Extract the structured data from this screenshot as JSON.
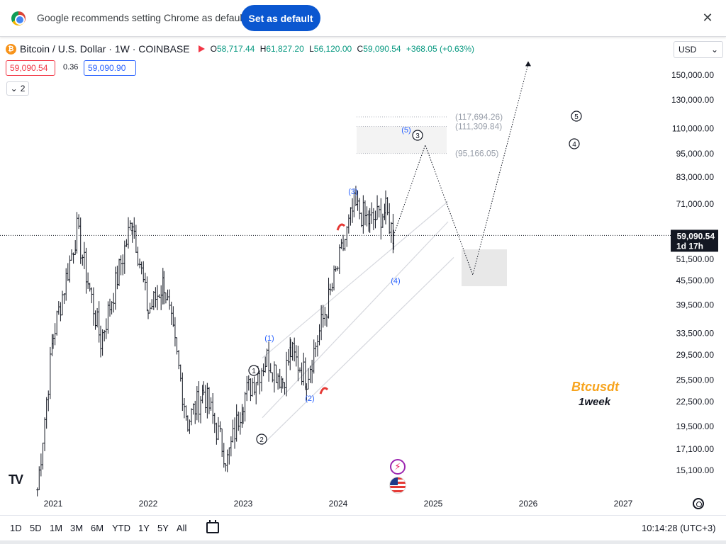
{
  "infobar": {
    "message": "Google recommends setting Chrome as default",
    "button_label": "Set as default",
    "close_label": "✕"
  },
  "symbol": {
    "title": "Bitcoin / U.S. Dollar · 1W · COINBASE",
    "ohlc": {
      "o_label": "O",
      "o": "58,717.44",
      "h_label": "H",
      "h": "61,827.20",
      "l_label": "L",
      "l": "56,120.00",
      "c_label": "C",
      "c": "59,090.54",
      "change": "+368.05 (+0.63%)"
    },
    "sell_price": "59,090.54",
    "spread": "0.36",
    "buy_price": "59,090.90",
    "indicator_count": "2",
    "currency": "USD"
  },
  "chart_data": {
    "type": "candlestick",
    "title": "Bitcoin / U.S. Dollar · 1W · COINBASE",
    "x_ticks": [
      "2021",
      "2022",
      "2023",
      "2024",
      "2025",
      "2026",
      "2027"
    ],
    "y_ticks": [
      "150,000.00",
      "130,000.00",
      "110,000.00",
      "95,000.00",
      "83,000.00",
      "71,000.00",
      "51,500.00",
      "45,500.00",
      "39,500.00",
      "33,500.00",
      "29,500.00",
      "25,500.00",
      "22,500.00",
      "19,500.00",
      "17,100.00",
      "15,100.00"
    ],
    "last_price_label": "59,090.54",
    "countdown_label": "1d 17h",
    "last_price": 59090.54,
    "fib_levels": [
      {
        "label": "(117,694.26)",
        "value": 117694.26
      },
      {
        "label": "(111,309.84)",
        "value": 111309.84
      },
      {
        "label": "(95,166.05)",
        "value": 95166.05
      }
    ],
    "wave_labels": {
      "blue": [
        "(1)",
        "(2)",
        "(3)",
        "(4)",
        "(5)"
      ],
      "black_circled": [
        "1",
        "2",
        "3",
        "4",
        "5"
      ]
    },
    "price_path": [
      {
        "date": "2020-11",
        "close": 13500
      },
      {
        "date": "2021-01",
        "close": 33000
      },
      {
        "date": "2021-04",
        "close": 61000
      },
      {
        "date": "2021-07",
        "close": 32000
      },
      {
        "date": "2021-11",
        "close": 65000
      },
      {
        "date": "2022-01",
        "close": 38000
      },
      {
        "date": "2022-03",
        "close": 45000
      },
      {
        "date": "2022-06",
        "close": 20000
      },
      {
        "date": "2022-08",
        "close": 24000
      },
      {
        "date": "2022-11",
        "close": 16000
      },
      {
        "date": "2023-01",
        "close": 23000
      },
      {
        "date": "2023-04",
        "close": 29000
      },
      {
        "date": "2023-06",
        "close": 25500
      },
      {
        "date": "2023-07",
        "close": 30000
      },
      {
        "date": "2023-09",
        "close": 26000
      },
      {
        "date": "2023-12",
        "close": 42000
      },
      {
        "date": "2024-03",
        "close": 70000
      },
      {
        "date": "2024-05",
        "close": 64000
      },
      {
        "date": "2024-07",
        "close": 68000
      },
      {
        "date": "2024-08",
        "close": 59090
      }
    ],
    "projection_path": [
      {
        "date": "2024-08",
        "value": 59090
      },
      {
        "date": "2024-12",
        "value": 100000
      },
      {
        "date": "2025-06",
        "value": 47000
      },
      {
        "date": "2026-01",
        "value": 160000
      }
    ],
    "scale": "log"
  },
  "annotation": {
    "brand": "Btcusdt",
    "timeframe": "1week"
  },
  "bottom_bar": {
    "ranges": [
      "1D",
      "5D",
      "1M",
      "3M",
      "6M",
      "YTD",
      "1Y",
      "5Y",
      "All"
    ],
    "clock": "10:14:28 (UTC+3)"
  },
  "colors": {
    "accent": "#0b57d0",
    "bullish": "#089981",
    "bearish": "#f23645",
    "brand": "#f7a41e",
    "wave_blue": "#2962ff"
  },
  "icons": {
    "chrome": "chrome-logo-icon",
    "close": "close-icon",
    "bitcoin": "bitcoin-logo-icon",
    "flag": "flag-icon",
    "tv": "tradingview-logo-icon",
    "settings": "gear-icon",
    "calendar": "calendar-icon"
  }
}
